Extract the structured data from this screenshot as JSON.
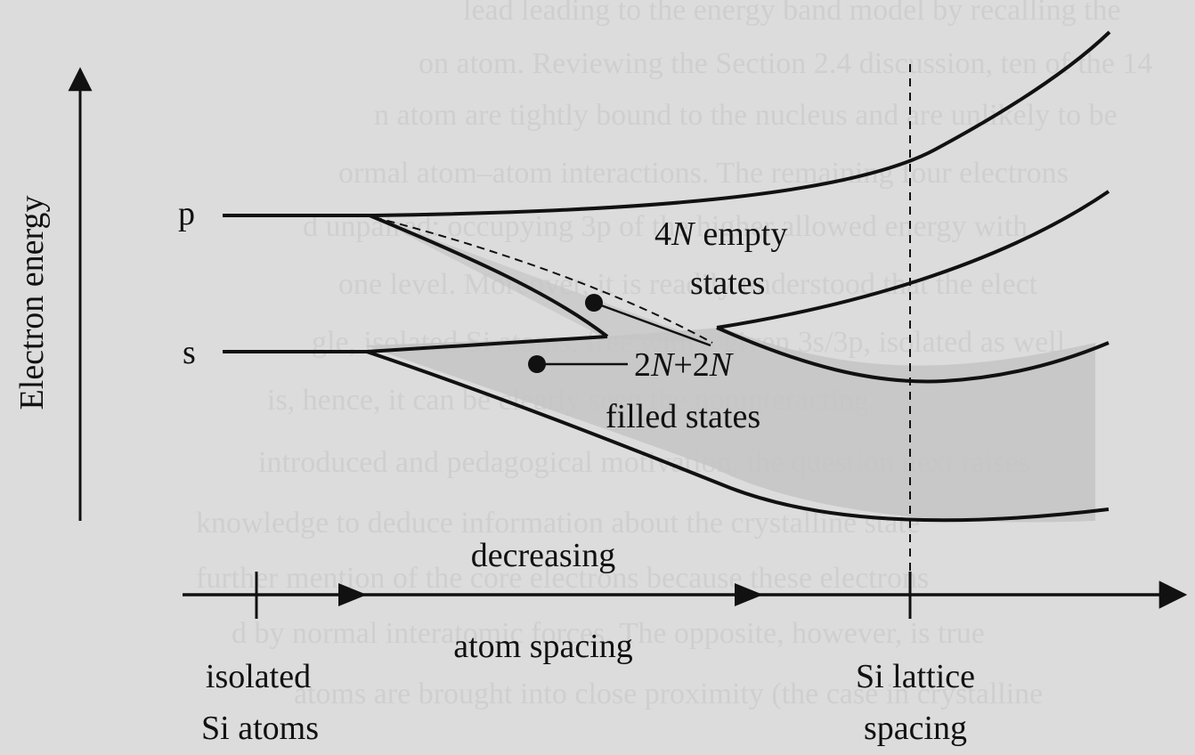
{
  "colors": {
    "background": "#dcdcdc",
    "ink": "#111111",
    "band_fill": "#c4c4c4"
  },
  "labels": {
    "y_axis": "Electron energy",
    "level_p": "p",
    "level_s": "s",
    "empty_count_num": "4",
    "empty_count_var": "N",
    "empty_word1": "empty",
    "empty_word2": "states",
    "filled_count_num1": "2",
    "filled_count_var1": "N",
    "filled_count_plus": "+2",
    "filled_count_var2": "N",
    "filled_word": "filled states",
    "x_axis_line1": "decreasing",
    "x_axis_line2": "atom spacing",
    "left_mark_line1": "isolated",
    "left_mark_line2": "Si atoms",
    "right_mark_line1": "Si lattice",
    "right_mark_line2": "spacing"
  },
  "background_text": [
    "lead leading to the energy band model by recalling the",
    "on atom. Reviewing the Section 2.4 discussion, ten of the 14",
    "n atom are tightly bound to the nucleus and are unlikely to be",
    "ormal atom–atom interactions. The remaining four electrons",
    "d unpaired: occupying 3p of the higher allowed energy with",
    "one level. Moreover, it is readily understood that the elect",
    "gle, isolated Si atoms, free with a given 3s/3p, isolated as well",
    "is, hence, it can be clearly seen the noninteracting.",
    "introduced and pedagogical motivation, the question next raises",
    "knowledge to deduce information about the crystalline state",
    "further mention of the core electrons because these electrons",
    "d by normal interatomic forces. The opposite, however, is true",
    "atoms are brought into close proximity (the case in crystalline"
  ]
}
